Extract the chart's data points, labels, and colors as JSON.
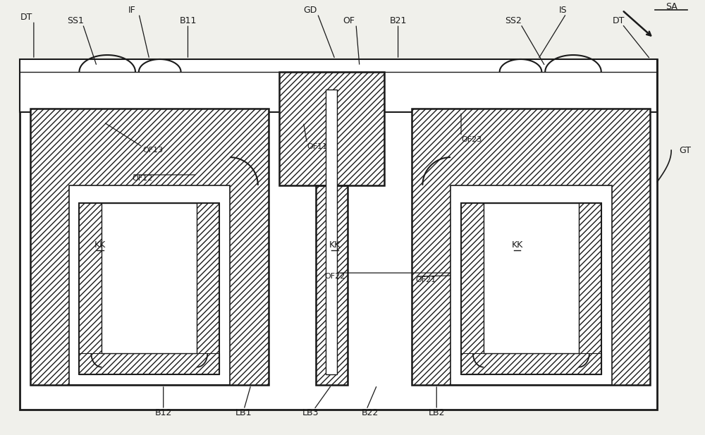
{
  "bg_color": "#f0f0eb",
  "line_color": "#1a1a1a",
  "lw": 1.5,
  "fig_width": 10.0,
  "fig_height": 6.17,
  "labels": {
    "DT_left": "DT",
    "SS1": "SS1",
    "IF": "IF",
    "B11": "B11",
    "GD": "GD",
    "OF_top": "OF",
    "B21": "B21",
    "IS": "IS",
    "SS2": "SS2",
    "DT_right": "DT",
    "SA": "SA",
    "GT": "GT",
    "OF13": "OF13",
    "OF12": "OF12",
    "KK_left": "KK",
    "OF11": "OF11",
    "KK_mid": "KK",
    "OF22": "OF22",
    "OF21": "OF21",
    "OF23": "OF23",
    "KK_right": "KK",
    "B12": "B12",
    "LB1": "LB1",
    "LB3": "LB3",
    "B22": "B22",
    "LB2": "LB2"
  }
}
